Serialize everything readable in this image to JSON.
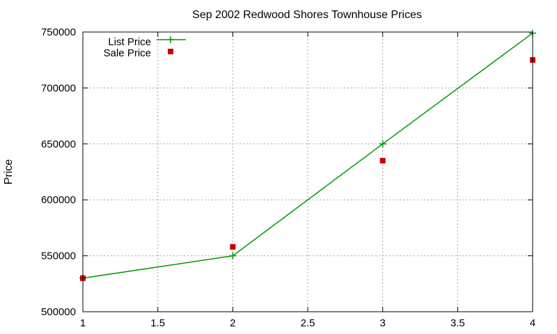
{
  "chart_data": {
    "type": "line",
    "title": "Sep 2002 Redwood Shores Townhouse Prices",
    "xlabel": "",
    "ylabel": "Price",
    "xlim": [
      1,
      4
    ],
    "ylim": [
      500000,
      750000
    ],
    "x_ticks": [
      1,
      1.5,
      2,
      2.5,
      3,
      3.5,
      4
    ],
    "y_ticks": [
      500000,
      550000,
      600000,
      650000,
      700000,
      750000
    ],
    "grid": true,
    "legend_position": "top-left",
    "series": [
      {
        "name": "List Price",
        "style": "lines-points",
        "marker": "plus",
        "color": "#009900",
        "x": [
          1,
          2,
          3,
          4
        ],
        "y": [
          530000,
          550000,
          650000,
          749000
        ]
      },
      {
        "name": "Sale Price",
        "style": "points",
        "marker": "square",
        "color": "#cc0000",
        "x": [
          1,
          2,
          3,
          4
        ],
        "y": [
          530000,
          558000,
          635000,
          725000
        ]
      }
    ]
  }
}
